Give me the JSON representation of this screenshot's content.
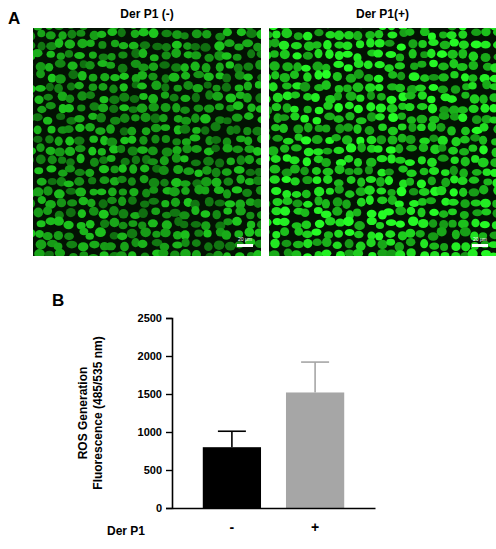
{
  "figure": {
    "panel_a": {
      "label": "A",
      "images": [
        {
          "title": "Der P1 (-)",
          "scale_bar": "20 μm"
        },
        {
          "title": "Der P1(+)",
          "scale_bar": "20 μm"
        }
      ]
    },
    "panel_b": {
      "label": "B"
    }
  },
  "chart_data": {
    "type": "bar",
    "categories": [
      "-",
      "+"
    ],
    "values": [
      800,
      1520
    ],
    "errors": [
      210,
      400
    ],
    "colors": [
      "#000000",
      "#a6a6a6"
    ],
    "xlabel": "Der P1",
    "ylabel": "ROS Generation\nFluorescence (485/535 nm)",
    "ylim": [
      0,
      2500
    ],
    "yticks": [
      0,
      500,
      1000,
      1500,
      2000,
      2500
    ],
    "grid": false
  }
}
